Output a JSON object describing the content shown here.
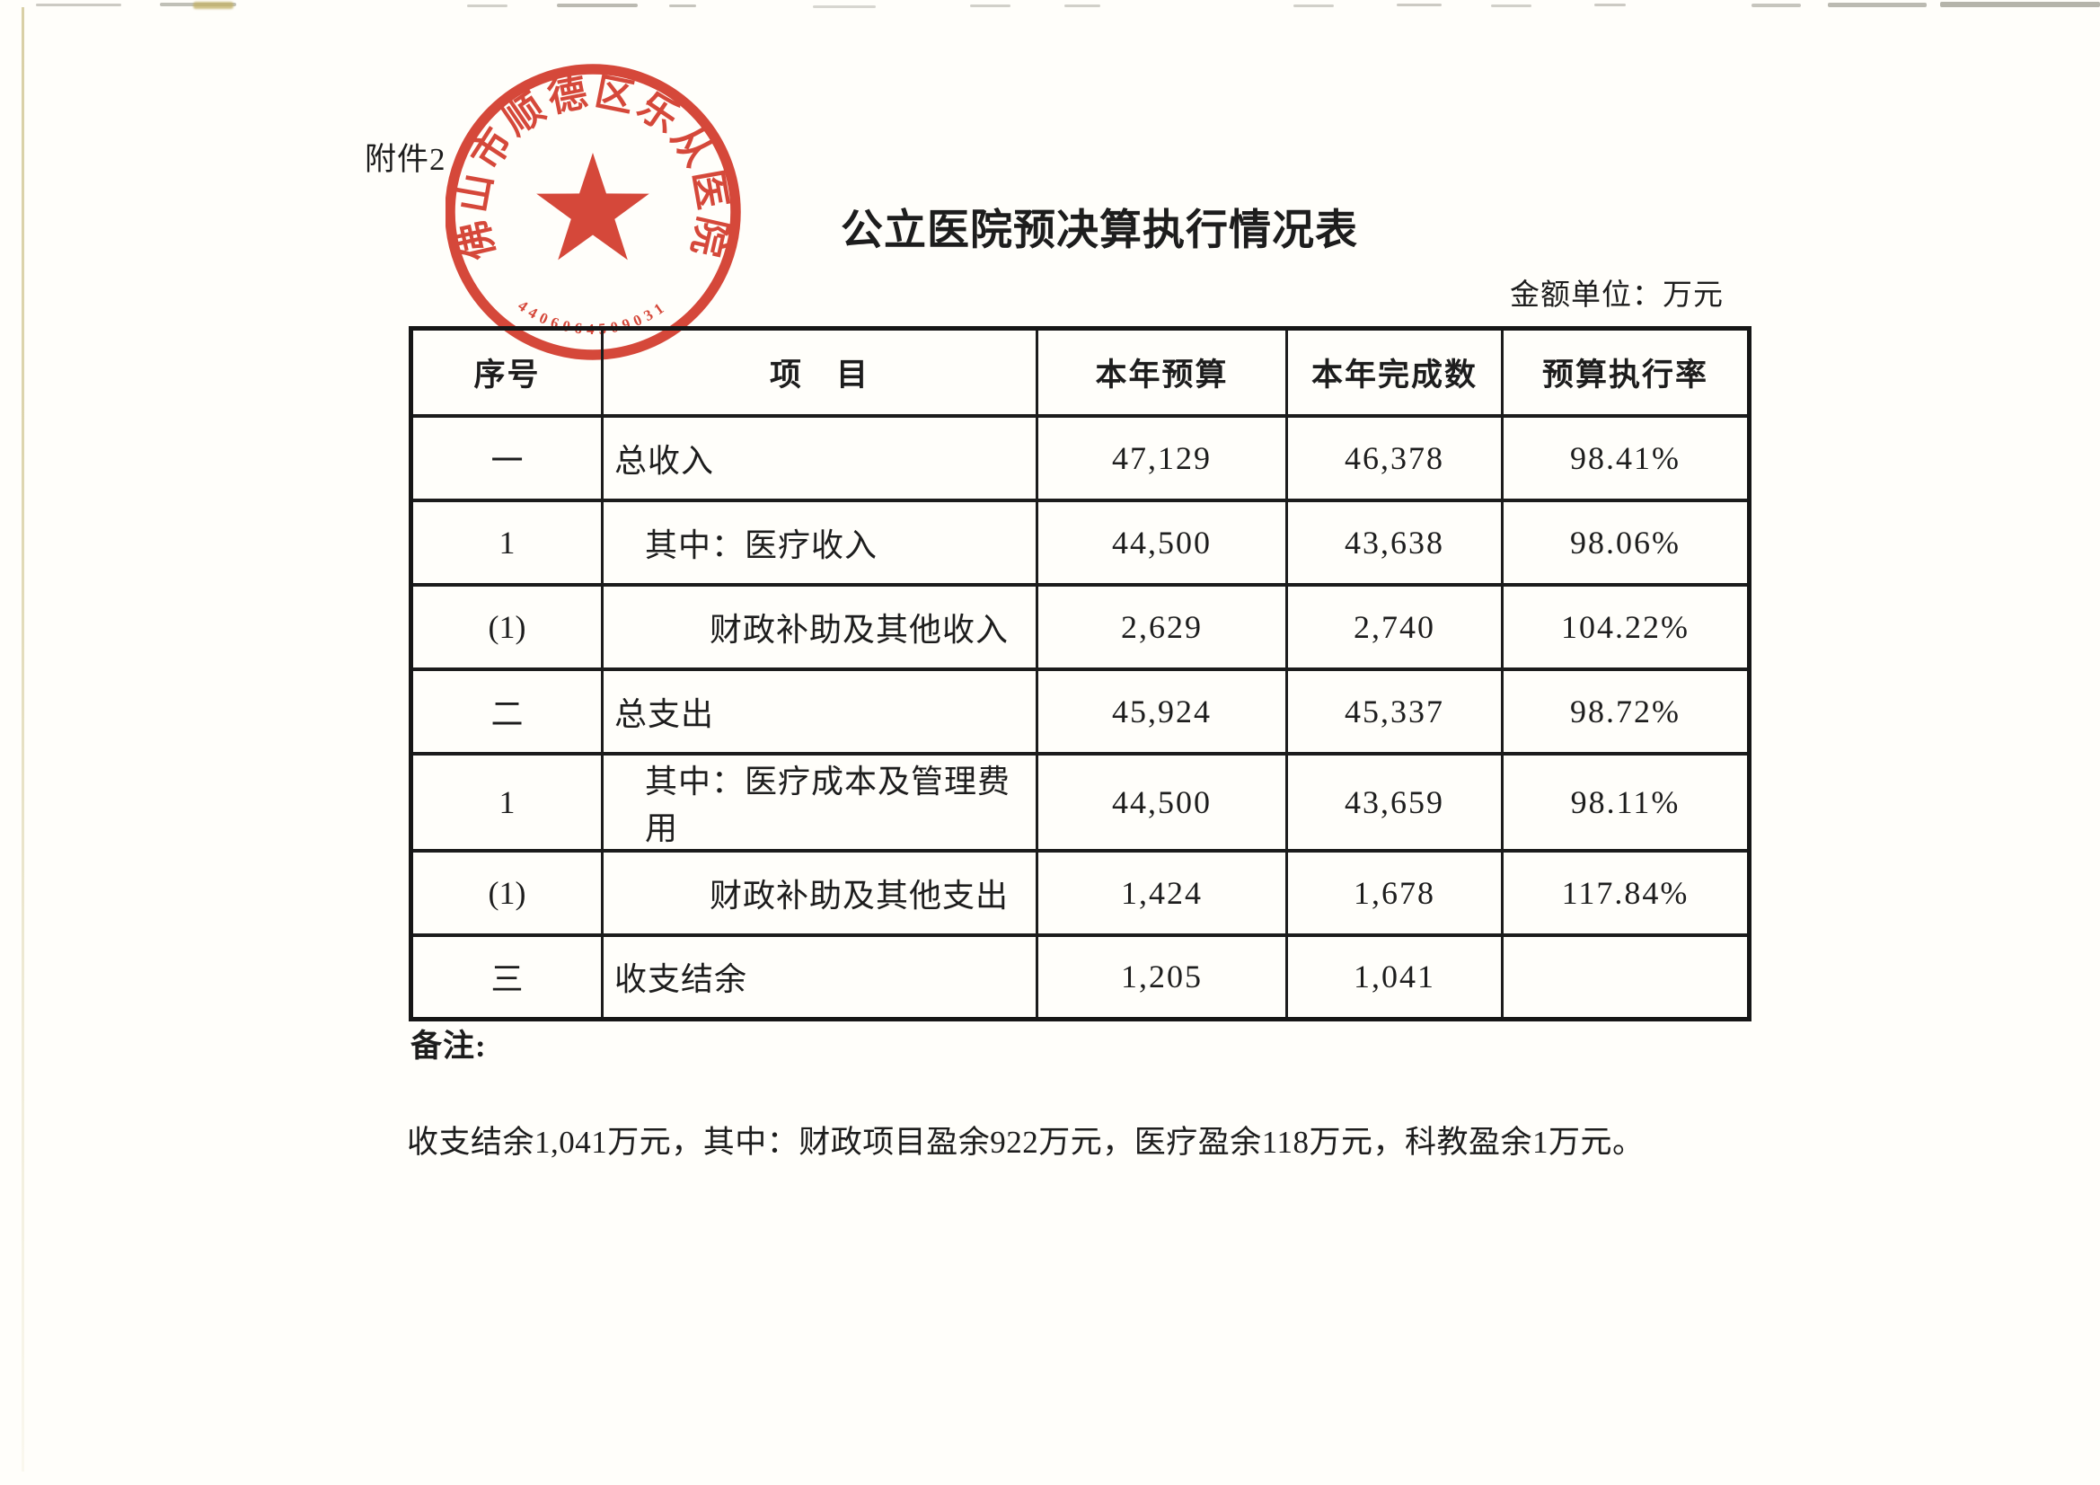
{
  "document": {
    "attachment_label": "附件2",
    "title": "公立医院预决算执行情况表",
    "unit_label": "金额单位：万元",
    "remark_label": "备注:",
    "remark_note": "收支结余1,041万元，其中：财政项目盈余922万元，医疗盈余118万元，科教盈余1万元。"
  },
  "stamp": {
    "organization": "佛山市顺德区乐从医院",
    "serial": "4406064509031",
    "color": "#d23a2c"
  },
  "table": {
    "headers": [
      "序号",
      "项　目",
      "本年预算",
      "本年完成数",
      "预算执行率"
    ],
    "rows": [
      {
        "no": "一",
        "item": "总收入",
        "budget": "47,129",
        "actual": "46,378",
        "rate": "98.41%",
        "bold": true,
        "indent": 0
      },
      {
        "no": "1",
        "item": "其中：医疗收入",
        "budget": "44,500",
        "actual": "43,638",
        "rate": "98.06%",
        "bold": false,
        "indent": 1
      },
      {
        "no": "(1)",
        "item": "财政补助及其他收入",
        "budget": "2,629",
        "actual": "2,740",
        "rate": "104.22%",
        "bold": false,
        "indent": 2
      },
      {
        "no": "二",
        "item": "总支出",
        "budget": "45,924",
        "actual": "45,337",
        "rate": "98.72%",
        "bold": true,
        "indent": 0
      },
      {
        "no": "1",
        "item": "其中：医疗成本及管理费用",
        "budget": "44,500",
        "actual": "43,659",
        "rate": "98.11%",
        "bold": false,
        "indent": 1
      },
      {
        "no": "(1)",
        "item": "财政补助及其他支出",
        "budget": "1,424",
        "actual": "1,678",
        "rate": "117.84%",
        "bold": false,
        "indent": 2
      },
      {
        "no": "三",
        "item": "收支结余",
        "budget": "1,205",
        "actual": "1,041",
        "rate": "",
        "bold": true,
        "indent": 0
      }
    ]
  }
}
